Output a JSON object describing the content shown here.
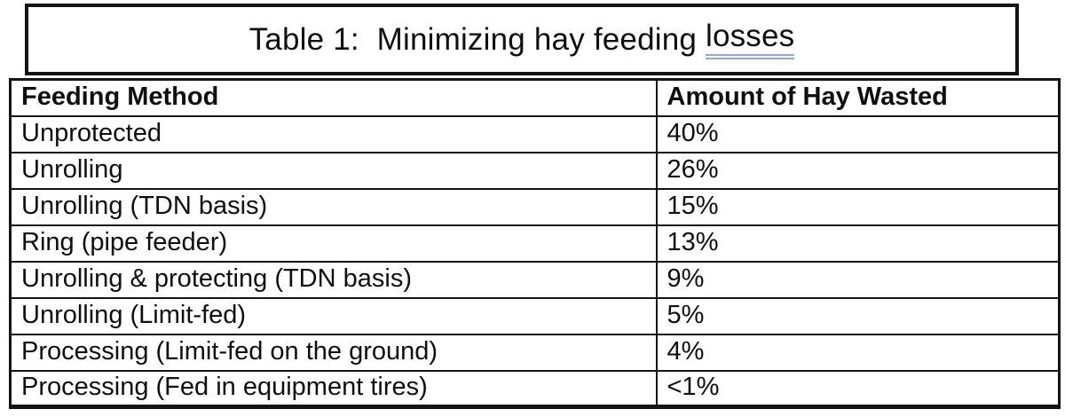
{
  "title": {
    "text_before": "Table 1:  Minimizing hay feeding ",
    "underlined_word": "losses"
  },
  "table": {
    "columns": [
      "Feeding Method",
      "Amount of Hay Wasted"
    ],
    "rows": [
      {
        "method": "Unprotected",
        "wasted": "40%"
      },
      {
        "method": "Unrolling",
        "wasted": "26%"
      },
      {
        "method": "Unrolling (TDN basis)",
        "wasted": "15%"
      },
      {
        "method": "Ring (pipe feeder)",
        "wasted": "13%"
      },
      {
        "method": "Unrolling & protecting (TDN basis)",
        "wasted": "9%"
      },
      {
        "method": "Unrolling (Limit-fed)",
        "wasted": "5%"
      },
      {
        "method": "Processing (Limit-fed on the ground)",
        "wasted": "4%"
      },
      {
        "method": "Processing (Fed in equipment tires)",
        "wasted": "<1%"
      }
    ]
  },
  "colors": {
    "background": "#ffffff",
    "text": "#0f0f0f",
    "border": "#141414",
    "grammar_underline": "#8ea9db"
  }
}
